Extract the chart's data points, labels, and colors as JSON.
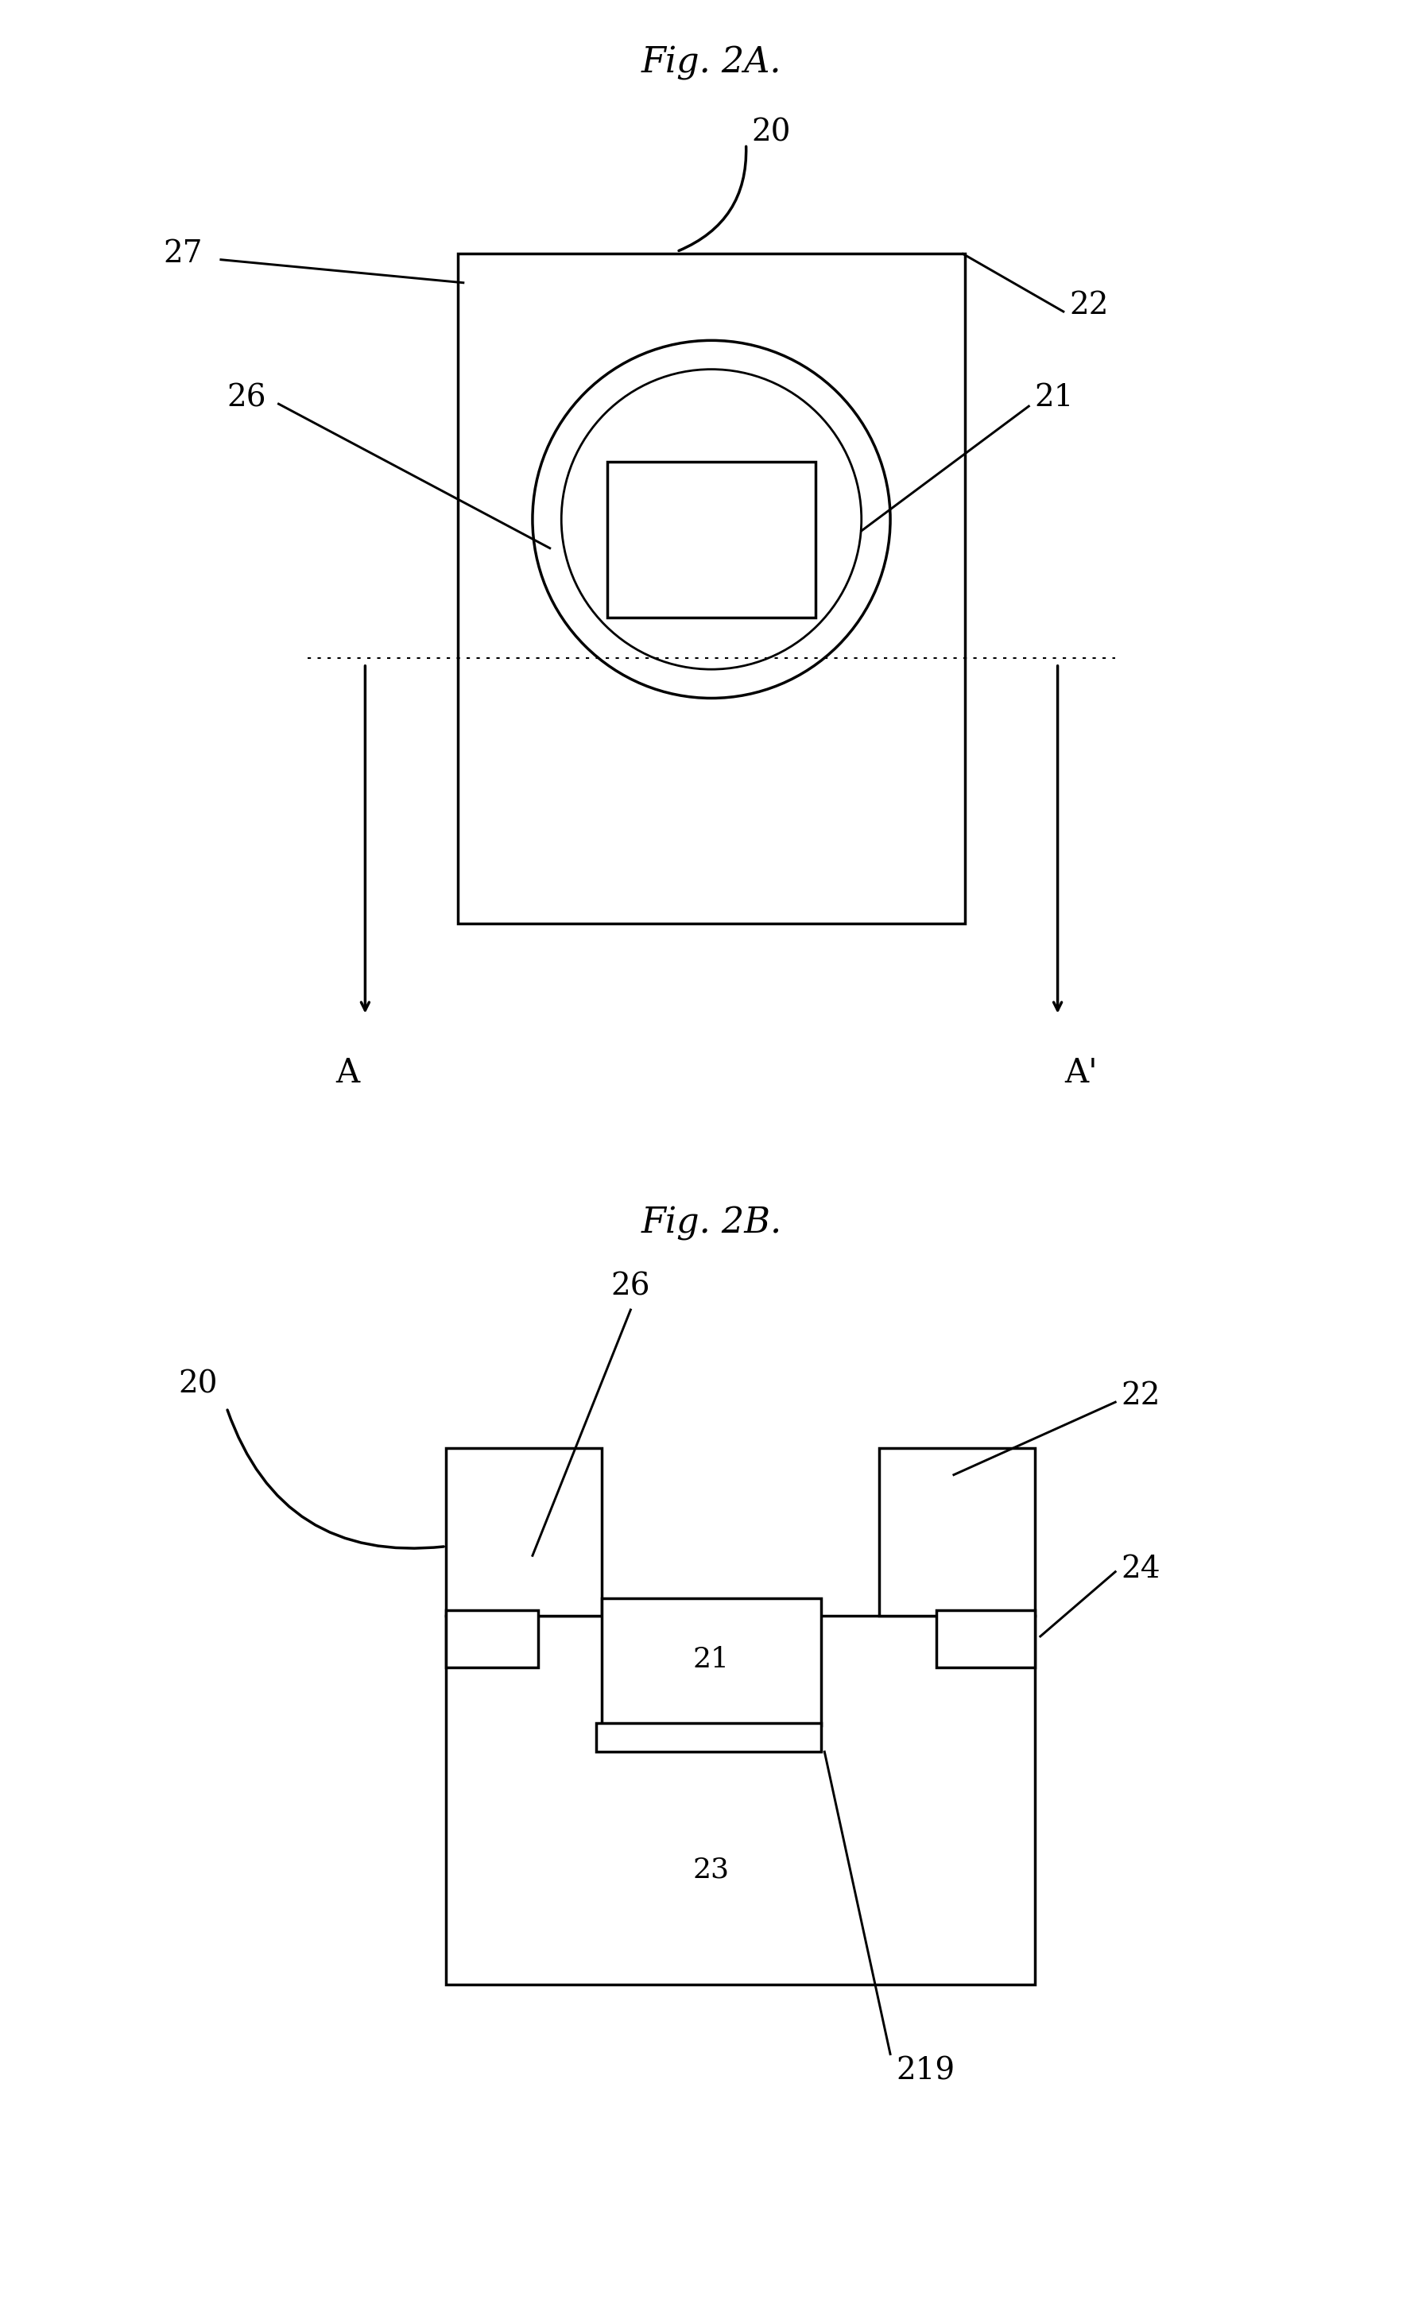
{
  "fig_title_a": "Fig. 2A.",
  "fig_title_b": "Fig. 2B.",
  "bg_color": "#ffffff",
  "line_color": "#000000",
  "line_width": 2.5,
  "font_size_title": 32,
  "font_size_label": 28
}
